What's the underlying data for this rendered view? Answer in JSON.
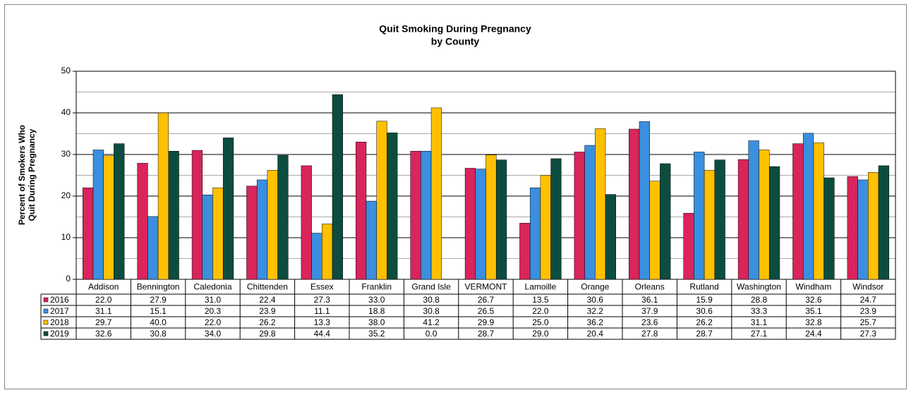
{
  "chart_data": {
    "type": "bar",
    "title": "Quit Smoking During Pregnancy",
    "subtitle": "by County",
    "ylabel": [
      "Percent of Smokers Who",
      "Quit During Pregnancy"
    ],
    "categories": [
      "Addison",
      "Bennington",
      "Caledonia",
      "Chittenden",
      "Essex",
      "Franklin",
      "Grand Isle",
      "VERMONT",
      "Lamoille",
      "Orange",
      "Orleans",
      "Rutland",
      "Washington",
      "Windham",
      "Windsor"
    ],
    "series": [
      {
        "name": "2016",
        "color": "#d9245c",
        "values": [
          22.0,
          27.9,
          31.0,
          22.4,
          27.3,
          33.0,
          30.8,
          26.7,
          13.5,
          30.6,
          36.1,
          15.9,
          28.8,
          32.6,
          24.7
        ],
        "value_labels": [
          "22.0",
          "27.9",
          "31.0",
          "22.4",
          "27.3",
          "33.0",
          "30.8",
          "26.7",
          "13.5",
          "30.6",
          "36.1",
          "15.9",
          "28.8",
          "32.6",
          "24.7"
        ]
      },
      {
        "name": "2017",
        "color": "#3a8fe0",
        "values": [
          31.1,
          15.1,
          20.3,
          23.9,
          11.1,
          18.8,
          30.8,
          26.5,
          22.0,
          32.2,
          37.9,
          30.6,
          33.3,
          35.1,
          23.9
        ],
        "value_labels": [
          "31.1",
          "15.1",
          "20.3",
          "23.9",
          "11.1",
          "18.8",
          "30.8",
          "26.5",
          "22.0",
          "32.2",
          "37.9",
          "30.6",
          "33.3",
          "35.1",
          "23.9"
        ]
      },
      {
        "name": "2018",
        "color": "#ffc000",
        "values": [
          29.7,
          40.0,
          22.0,
          26.2,
          13.3,
          38.0,
          41.2,
          29.9,
          25.0,
          36.2,
          23.6,
          26.2,
          31.1,
          32.8,
          25.7
        ],
        "value_labels": [
          "29.7",
          "40.0",
          "22.0",
          "26.2",
          "13.3",
          "38.0",
          "41.2",
          "29.9",
          "25.0",
          "36.2",
          "23.6",
          "26.2",
          "31.1",
          "32.8",
          "25.7"
        ]
      },
      {
        "name": "2019",
        "color": "#0c4d3f",
        "values": [
          32.6,
          30.8,
          34.0,
          29.8,
          44.4,
          35.2,
          0.0,
          28.7,
          29.0,
          20.4,
          27.8,
          28.7,
          27.1,
          24.4,
          27.3
        ],
        "value_labels": [
          "32.6",
          "30.8",
          "34.0",
          "29.8",
          "44.4",
          "35.2",
          "0.0",
          "28.7",
          "29.0",
          "20.4",
          "27.8",
          "28.7",
          "27.1",
          "24.4",
          "27.3"
        ]
      }
    ],
    "ylim": [
      0,
      50
    ],
    "yticks": [
      0,
      10,
      20,
      30,
      40,
      50
    ],
    "minor_yticks": [
      5,
      15,
      25,
      35,
      45
    ],
    "grid": true
  }
}
